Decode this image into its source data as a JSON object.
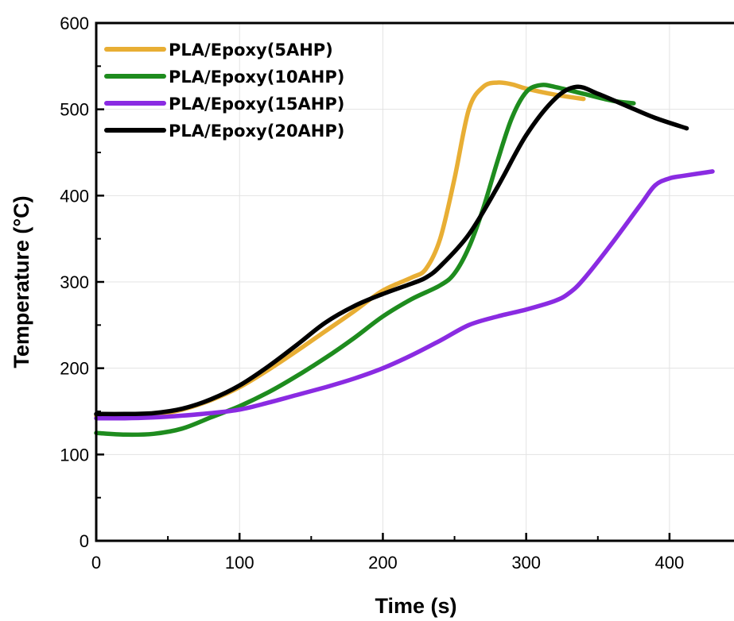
{
  "chart_data": {
    "type": "line",
    "xlabel": "Time (s)",
    "ylabel": "Temperature (°C)",
    "xlim": [
      0,
      445
    ],
    "ylim": [
      0,
      600
    ],
    "xticks": [
      0,
      100,
      200,
      300,
      400
    ],
    "yticks": [
      0,
      100,
      200,
      300,
      400,
      500,
      600
    ],
    "grid": true,
    "legend_position": "top-left",
    "series": [
      {
        "name": "PLA/Epoxy(5AHP)",
        "color": "#E8AE34",
        "x": [
          0,
          20,
          40,
          60,
          80,
          100,
          120,
          140,
          160,
          180,
          200,
          220,
          230,
          240,
          250,
          260,
          270,
          280,
          290,
          300,
          320,
          340
        ],
        "y": [
          145,
          145,
          146,
          152,
          163,
          178,
          198,
          220,
          243,
          266,
          290,
          305,
          315,
          350,
          420,
          500,
          526,
          531,
          529,
          524,
          517,
          512
        ]
      },
      {
        "name": "PLA/Epoxy(10AHP)",
        "color": "#1E8C1E",
        "x": [
          0,
          20,
          40,
          60,
          80,
          100,
          120,
          140,
          160,
          180,
          200,
          220,
          240,
          250,
          260,
          270,
          280,
          290,
          300,
          310,
          320,
          340,
          360,
          375
        ],
        "y": [
          125,
          123,
          124,
          130,
          143,
          156,
          172,
          191,
          212,
          235,
          260,
          280,
          296,
          310,
          340,
          385,
          440,
          490,
          520,
          528,
          526,
          518,
          510,
          507
        ]
      },
      {
        "name": "PLA/Epoxy(15AHP)",
        "color": "#8A2BE2",
        "x": [
          0,
          20,
          40,
          60,
          80,
          100,
          120,
          140,
          160,
          180,
          200,
          220,
          240,
          260,
          280,
          300,
          320,
          330,
          340,
          360,
          380,
          390,
          400,
          410,
          430
        ],
        "y": [
          142,
          142,
          143,
          145,
          148,
          152,
          160,
          169,
          178,
          188,
          200,
          215,
          232,
          250,
          260,
          268,
          278,
          287,
          303,
          345,
          390,
          412,
          420,
          423,
          428
        ]
      },
      {
        "name": "PLA/Epoxy(20AHP)",
        "color": "#000000",
        "x": [
          0,
          20,
          40,
          60,
          80,
          100,
          120,
          140,
          160,
          180,
          200,
          220,
          230,
          240,
          260,
          280,
          300,
          320,
          335,
          350,
          370,
          390,
          412
        ],
        "y": [
          147,
          147,
          148,
          153,
          164,
          180,
          202,
          227,
          253,
          272,
          286,
          298,
          305,
          318,
          355,
          410,
          470,
          512,
          526,
          518,
          504,
          490,
          478
        ]
      }
    ]
  }
}
